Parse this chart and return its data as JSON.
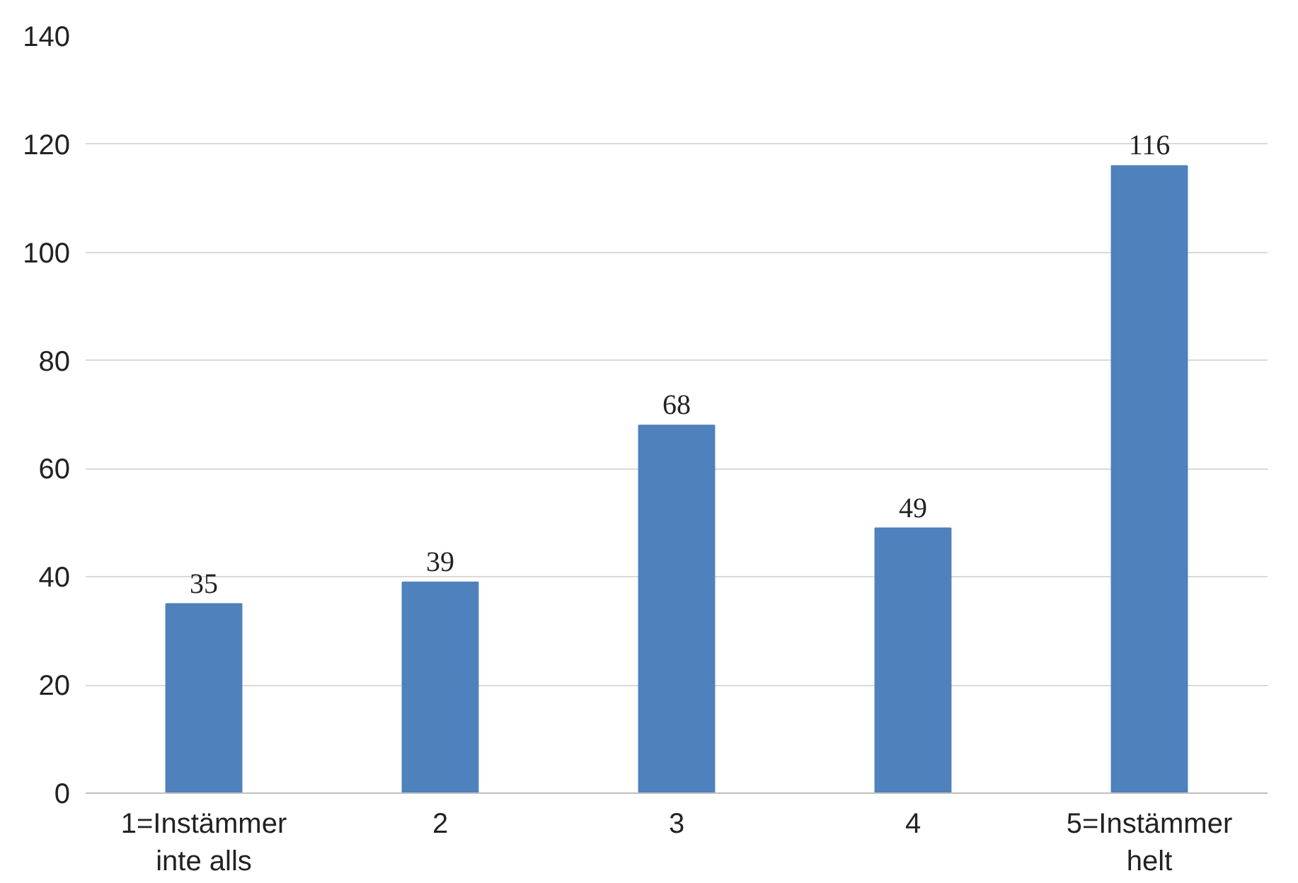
{
  "chart_data": {
    "type": "bar",
    "categories": [
      "1=Instämmer inte alls",
      "2",
      "3",
      "4",
      "5=Instämmer helt"
    ],
    "values": [
      35,
      39,
      68,
      49,
      116
    ],
    "color": "#4f81bd",
    "ylim": [
      0,
      140
    ],
    "yticks": [
      0,
      20,
      40,
      60,
      80,
      100,
      120,
      140
    ],
    "grid": "y",
    "data_labels": true
  }
}
